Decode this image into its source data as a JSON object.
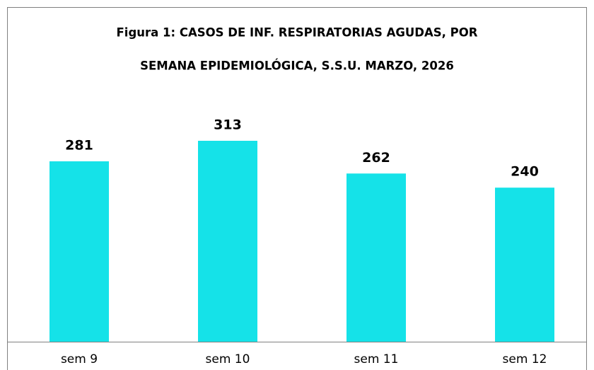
{
  "chart_data": {
    "type": "bar",
    "title": [
      "Figura 1: CASOS DE INF. RESPIRATORIAS AGUDAS, POR",
      "SEMANA   EPIDEMIOLÓGICA, S.S.U. MARZO, 2026"
    ],
    "categories": [
      "sem 9",
      "sem 10",
      "sem 11",
      "sem 12"
    ],
    "values": [
      281,
      313,
      262,
      240
    ],
    "color": "#15e2e8"
  }
}
